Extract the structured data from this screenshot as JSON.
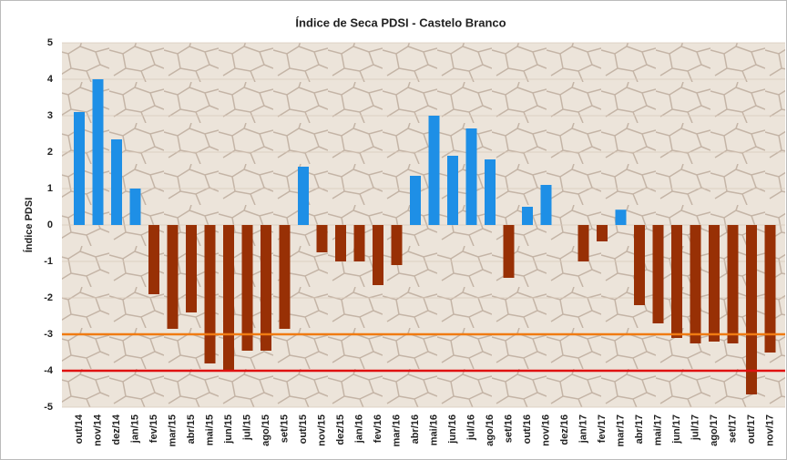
{
  "chart_data": {
    "type": "bar",
    "title": "Índice de Seca PDSI - Castelo Branco",
    "y_label": "Índice PDSI",
    "categories": [
      "out/14",
      "nov/14",
      "dez/14",
      "jan/15",
      "fev/15",
      "mar/15",
      "abr/15",
      "mai/15",
      "jun/15",
      "jul/15",
      "ago/15",
      "set/15",
      "out/15",
      "nov/15",
      "dez/15",
      "jan/16",
      "fev/16",
      "mar/16",
      "abr/16",
      "mai/16",
      "jun/16",
      "jul/16",
      "ago/16",
      "set/16",
      "out/16",
      "nov/16",
      "dez/16",
      "jan/17",
      "fev/17",
      "mar/17",
      "abr/17",
      "mai/17",
      "jun/17",
      "jul/17",
      "ago/17",
      "set/17",
      "out/17",
      "nov/17"
    ],
    "values": [
      3.1,
      4.0,
      2.35,
      1.0,
      -1.9,
      -2.85,
      -2.4,
      -3.8,
      -4.0,
      -3.45,
      -3.45,
      -2.85,
      1.6,
      -0.75,
      -1.0,
      -1.0,
      -1.65,
      -1.1,
      1.35,
      3.0,
      1.9,
      2.65,
      1.8,
      -1.45,
      0.5,
      1.1,
      0,
      -1.0,
      -0.45,
      0.42,
      -2.2,
      -2.7,
      -3.1,
      -3.25,
      -3.2,
      -3.25,
      -4.65,
      -3.5
    ],
    "positive_color": "#1e8fe6",
    "negative_color": "#983005",
    "ylim": [
      -5,
      5
    ],
    "yticks": [
      -5,
      -4,
      -3,
      -2,
      -1,
      0,
      1,
      2,
      3,
      4,
      5
    ],
    "grid": true,
    "reference_lines": [
      {
        "value": -3,
        "color": "#f07b12"
      },
      {
        "value": -4,
        "color": "#e01010"
      }
    ]
  }
}
